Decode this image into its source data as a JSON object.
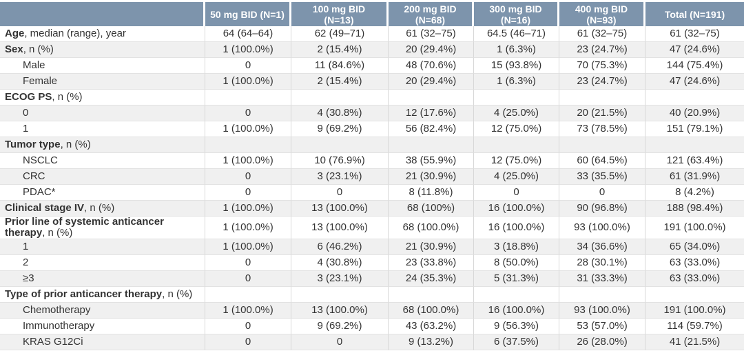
{
  "colors": {
    "header_bg": "#7d94ac",
    "header_text": "#ffffff",
    "stripe": "#f0f0f0",
    "body_text": "#333333"
  },
  "header": {
    "columns": [
      "",
      "50 mg BID (N=1)",
      "100 mg BID\n(N=13)",
      "200 mg BID\n(N=68)",
      "300 mg BID\n(N=16)",
      "400 mg BID\n(N=93)",
      "Total (N=191)"
    ]
  },
  "rows": [
    {
      "bold": "Age",
      "suffix": ", median (range), year",
      "indent": false,
      "cells": [
        "64 (64–64)",
        "62 (49–71)",
        "61 (32–75)",
        "64.5 (46–71)",
        "61 (32–75)",
        "61 (32–75)"
      ]
    },
    {
      "bold": "Sex",
      "suffix": ", n (%)",
      "indent": false,
      "cells": [
        "1 (100.0%)",
        "2 (15.4%)",
        "20 (29.4%)",
        "1 (6.3%)",
        "23 (24.7%)",
        "47 (24.6%)"
      ]
    },
    {
      "label": "Male",
      "indent": true,
      "cells": [
        "0",
        "11 (84.6%)",
        "48 (70.6%)",
        "15 (93.8%)",
        "70 (75.3%)",
        "144 (75.4%)"
      ]
    },
    {
      "label": "Female",
      "indent": true,
      "cells": [
        "1 (100.0%)",
        "2 (15.4%)",
        "20 (29.4%)",
        "1 (6.3%)",
        "23 (24.7%)",
        "47 (24.6%)"
      ]
    },
    {
      "bold": "ECOG PS",
      "suffix": ", n (%)",
      "indent": false,
      "cells": [
        "",
        "",
        "",
        "",
        "",
        ""
      ]
    },
    {
      "label": "0",
      "indent": true,
      "cells": [
        "0",
        "4 (30.8%)",
        "12 (17.6%)",
        "4 (25.0%)",
        "20 (21.5%)",
        "40 (20.9%)"
      ]
    },
    {
      "label": "1",
      "indent": true,
      "cells": [
        "1 (100.0%)",
        "9 (69.2%)",
        "56 (82.4%)",
        "12 (75.0%)",
        "73 (78.5%)",
        "151 (79.1%)"
      ]
    },
    {
      "bold": "Tumor type",
      "suffix": ", n (%)",
      "indent": false,
      "cells": [
        "",
        "",
        "",
        "",
        "",
        ""
      ]
    },
    {
      "label": "NSCLC",
      "indent": true,
      "cells": [
        "1 (100.0%)",
        "10 (76.9%)",
        "38 (55.9%)",
        "12 (75.0%)",
        "60 (64.5%)",
        "121 (63.4%)"
      ]
    },
    {
      "label": "CRC",
      "indent": true,
      "cells": [
        "0",
        "3 (23.1%)",
        "21 (30.9%)",
        "4 (25.0%)",
        "33 (35.5%)",
        "61 (31.9%)"
      ]
    },
    {
      "label": "PDAC*",
      "indent": true,
      "cells": [
        "0",
        "0",
        "8 (11.8%)",
        "0",
        "0",
        "8 (4.2%)"
      ]
    },
    {
      "bold": "Clinical stage IV",
      "suffix": ", n (%)",
      "indent": false,
      "cells": [
        "1 (100.0%)",
        "13 (100.0%)",
        "68 (100%)",
        "16 (100.0%)",
        "90 (96.8%)",
        "188 (98.4%)"
      ]
    },
    {
      "bold": "Prior line of systemic anticancer therapy",
      "suffix": ", n (%)",
      "indent": false,
      "cells": [
        "1 (100.0%)",
        "13 (100.0%)",
        "68 (100.0%)",
        "16 (100.0%)",
        "93 (100.0%)",
        "191 (100.0%)"
      ]
    },
    {
      "label": "1",
      "indent": true,
      "cells": [
        "1 (100.0%)",
        "6 (46.2%)",
        "21 (30.9%)",
        "3 (18.8%)",
        "34 (36.6%)",
        "65 (34.0%)"
      ]
    },
    {
      "label": "2",
      "indent": true,
      "cells": [
        "0",
        "4 (30.8%)",
        "23 (33.8%)",
        "8 (50.0%)",
        "28 (30.1%)",
        "63 (33.0%)"
      ]
    },
    {
      "label": "≥3",
      "indent": true,
      "cells": [
        "0",
        "3 (23.1%)",
        "24 (35.3%)",
        "5 (31.3%)",
        "31 (33.3%)",
        "63 (33.0%)"
      ]
    },
    {
      "bold": "Type of prior anticancer therapy",
      "suffix": ", n (%)",
      "indent": false,
      "cells": [
        "",
        "",
        "",
        "",
        "",
        ""
      ]
    },
    {
      "label": "Chemotherapy",
      "indent": true,
      "cells": [
        "1 (100.0%)",
        "13 (100.0%)",
        "68 (100.0%)",
        "16 (100.0%)",
        "93 (100.0%)",
        "191 (100.0%)"
      ]
    },
    {
      "label": "Immunotherapy",
      "indent": true,
      "cells": [
        "0",
        "9 (69.2%)",
        "43 (63.2%)",
        "9 (56.3%)",
        "53 (57.0%)",
        "114 (59.7%)"
      ]
    },
    {
      "label": "KRAS G12Ci",
      "indent": true,
      "cells": [
        "0",
        "0",
        "9 (13.2%)",
        "6 (37.5%)",
        "26 (28.0%)",
        "41 (21.5%)"
      ]
    }
  ]
}
